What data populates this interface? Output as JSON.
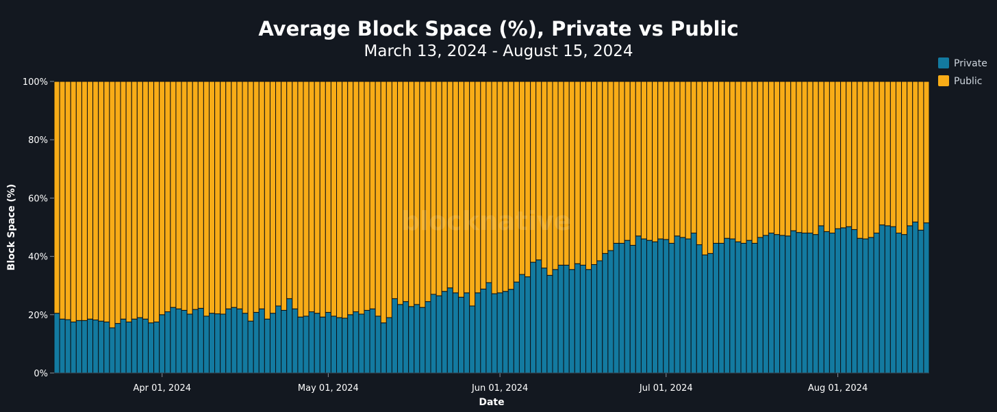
{
  "chart_data": {
    "type": "bar",
    "stacked": true,
    "title": "Average Block Space (%), Private vs Public",
    "subtitle": "March 13, 2024 - August 15, 2024",
    "xlabel": "Date",
    "ylabel": "Block Space (%)",
    "ylim": [
      0,
      100
    ],
    "yticks": [
      "0%",
      "20%",
      "40%",
      "60%",
      "80%",
      "100%"
    ],
    "xticks": [
      "Apr 01, 2024",
      "May 01, 2024",
      "Jun 01, 2024",
      "Jul 01, 2024",
      "Aug 01, 2024"
    ],
    "x_start": "2024-03-13",
    "x_end": "2024-08-15",
    "grid": true,
    "legend": "top-right",
    "watermark": "blocknative",
    "colors": {
      "private": "#137aa0",
      "public": "#f8ac17",
      "background": "#131820",
      "grid": "#2c3540"
    },
    "series": [
      {
        "name": "Private",
        "values": [
          20.5,
          18.5,
          18.3,
          17.5,
          18,
          18,
          18.5,
          18.2,
          17.8,
          17.5,
          15.5,
          17,
          18.5,
          17.5,
          18.5,
          19,
          18.5,
          17.2,
          17.5,
          20,
          21,
          22.5,
          22,
          21.5,
          20.2,
          21.8,
          22.2,
          19.5,
          20.5,
          20.3,
          20.2,
          22,
          22.5,
          22,
          20.5,
          17.8,
          20.8,
          22,
          18.5,
          20.5,
          23,
          21.5,
          25.5,
          22,
          19.2,
          19.5,
          21,
          20.5,
          19.2,
          20.8,
          19.5,
          19,
          18.8,
          20,
          21,
          20.2,
          21.5,
          22,
          19.5,
          17.2,
          19,
          25.5,
          23.5,
          24.5,
          22.8,
          23.5,
          22.5,
          24.5,
          27,
          26.5,
          28,
          29.2,
          27.5,
          26,
          27.5,
          23,
          27.5,
          28.8,
          31,
          27.2,
          27.5,
          28,
          28.7,
          31.2,
          33.8,
          33,
          38,
          38.8,
          36,
          33.5,
          35.5,
          37,
          37,
          35.5,
          37.5,
          37,
          35.5,
          37.2,
          38.5,
          41,
          42,
          44.5,
          44.5,
          45.5,
          43.8,
          47,
          46,
          45.5,
          45,
          46,
          45.8,
          44.5,
          47,
          46.5,
          46,
          48,
          44,
          40.5,
          41,
          44.5,
          44.5,
          46.2,
          46,
          45,
          44.5,
          45.5,
          44.5,
          46.5,
          47.2,
          48,
          47.5,
          47.2,
          47,
          48.8,
          48.2,
          48,
          48,
          47.5,
          50.5,
          48.5,
          48,
          49.5,
          49.8,
          50.2,
          49.2,
          46.2,
          46,
          46.5,
          48,
          50.8,
          50.5,
          50.2,
          48,
          47.5,
          50.5,
          51.8,
          49,
          51.5
        ]
      },
      {
        "name": "Public",
        "values": [
          79.5,
          81.5,
          81.7,
          82.5,
          82,
          82,
          81.5,
          81.8,
          82.2,
          82.5,
          84.5,
          83,
          81.5,
          82.5,
          81.5,
          81,
          81.5,
          82.8,
          82.5,
          80,
          79,
          77.5,
          78,
          78.5,
          79.8,
          78.2,
          77.8,
          80.5,
          79.5,
          79.7,
          79.8,
          78,
          77.5,
          78,
          79.5,
          82.2,
          79.2,
          78,
          81.5,
          79.5,
          77,
          78.5,
          74.5,
          78,
          80.8,
          80.5,
          79,
          79.5,
          80.8,
          79.2,
          80.5,
          81,
          81.2,
          80,
          79,
          79.8,
          78.5,
          78,
          80.5,
          82.8,
          81,
          74.5,
          76.5,
          75.5,
          77.2,
          76.5,
          77.5,
          75.5,
          73,
          73.5,
          72,
          70.8,
          72.5,
          74,
          72.5,
          77,
          72.5,
          71.2,
          69,
          72.8,
          72.5,
          72,
          71.3,
          68.8,
          66.2,
          67,
          62,
          61.2,
          64,
          66.5,
          64.5,
          63,
          63,
          64.5,
          62.5,
          63,
          64.5,
          62.8,
          61.5,
          59,
          58,
          55.5,
          55.5,
          54.5,
          56.2,
          53,
          54,
          54.5,
          55,
          54,
          54.2,
          55.5,
          53,
          53.5,
          54,
          52,
          56,
          59.5,
          59,
          55.5,
          55.5,
          53.8,
          54,
          55,
          55.5,
          54.5,
          55.5,
          53.5,
          52.8,
          52,
          52.5,
          52.8,
          53,
          51.2,
          51.8,
          52,
          52,
          52.5,
          49.5,
          51.5,
          52,
          50.5,
          50.2,
          49.8,
          50.8,
          53.8,
          54,
          53.5,
          52,
          49.2,
          49.5,
          49.8,
          52,
          52.5,
          49.5,
          48.2,
          51,
          48.5
        ]
      }
    ]
  }
}
